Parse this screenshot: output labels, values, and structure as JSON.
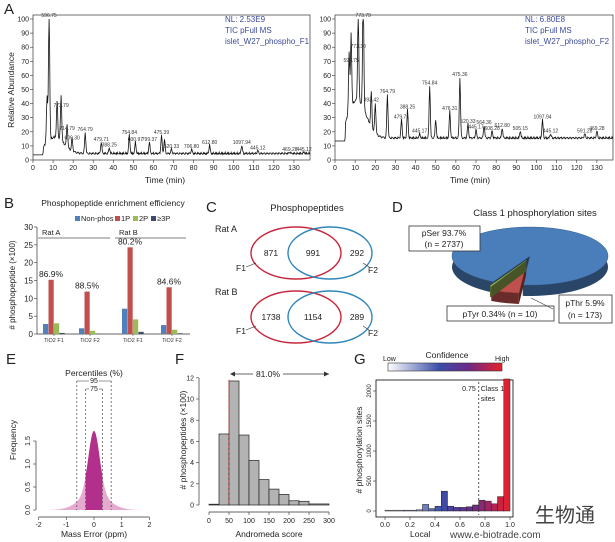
{
  "chart_data": [
    {
      "panel": "A",
      "type": "line",
      "ylabel": "Relative Abundance",
      "xlabel": "Time (min)",
      "info": [
        "NL: 2.53E9",
        "TIC pFull MS",
        "islet_W27_phospho_F1"
      ],
      "xlim": [
        0,
        138
      ],
      "ylim": [
        0,
        100
      ],
      "xticks": [
        0,
        10,
        20,
        30,
        40,
        50,
        60,
        70,
        80,
        90,
        100,
        110,
        120,
        130
      ],
      "yticks": [
        0,
        10,
        20,
        30,
        40,
        50,
        60,
        70,
        80,
        90,
        100
      ],
      "baseline": 4,
      "peaks": [
        {
          "t": 8,
          "y": 100,
          "label": "596.75"
        },
        {
          "t": 7,
          "y": 37,
          "label": ""
        },
        {
          "t": 12,
          "y": 30,
          "label": ""
        },
        {
          "t": 14,
          "y": 36,
          "label": "773.79"
        },
        {
          "t": 17,
          "y": 20,
          "label": "714.79"
        },
        {
          "t": 19.5,
          "y": 13,
          "label": "609.30"
        },
        {
          "t": 26,
          "y": 19,
          "label": "764.79"
        },
        {
          "t": 34,
          "y": 12,
          "label": "479.71"
        },
        {
          "t": 38,
          "y": 8,
          "label": "388.25"
        },
        {
          "t": 48,
          "y": 17,
          "label": "754.84"
        },
        {
          "t": 51,
          "y": 12,
          "label": "600.97"
        },
        {
          "t": 58,
          "y": 12,
          "label": "799.37"
        },
        {
          "t": 64,
          "y": 17,
          "label": "475.39"
        },
        {
          "t": 65.5,
          "y": 14,
          "label": ""
        },
        {
          "t": 69,
          "y": 7,
          "label": "520.33"
        },
        {
          "t": 79,
          "y": 7,
          "label": "706.80"
        },
        {
          "t": 88,
          "y": 10,
          "label": "612.80"
        },
        {
          "t": 104,
          "y": 10,
          "label": "1097.94"
        },
        {
          "t": 112,
          "y": 6,
          "label": "445.12"
        },
        {
          "t": 128,
          "y": 5,
          "label": "469.28"
        },
        {
          "t": 135,
          "y": 5,
          "label": "445.12"
        }
      ]
    },
    {
      "panel": "",
      "type": "line",
      "xlabel": "Time (min)",
      "info": [
        "NL: 6.80E8",
        "TIC pFull MS",
        "islet_W27_phospho_F2"
      ],
      "xlim": [
        0,
        138
      ],
      "ylim": [
        0,
        100
      ],
      "xticks": [
        0,
        10,
        20,
        30,
        40,
        50,
        60,
        70,
        80,
        90,
        100,
        110,
        120,
        130
      ],
      "yticks": [
        0,
        10,
        20,
        30,
        40,
        50,
        60,
        70,
        80,
        90,
        100
      ],
      "baseline": 15,
      "peaks": [
        {
          "t": 8,
          "y": 68,
          "label": "596.75"
        },
        {
          "t": 7,
          "y": 58,
          "label": ""
        },
        {
          "t": 11.5,
          "y": 78,
          "label": "773.30"
        },
        {
          "t": 14,
          "y": 100,
          "label": "773.79"
        },
        {
          "t": 18,
          "y": 40,
          "label": "393.42"
        },
        {
          "t": 20,
          "y": 36,
          "label": ""
        },
        {
          "t": 26,
          "y": 46,
          "label": "764.79"
        },
        {
          "t": 33,
          "y": 28,
          "label": "479.71"
        },
        {
          "t": 36,
          "y": 35,
          "label": "388.25"
        },
        {
          "t": 42,
          "y": 18,
          "label": "445.17"
        },
        {
          "t": 47,
          "y": 52,
          "label": "754.84"
        },
        {
          "t": 50,
          "y": 28,
          "label": ""
        },
        {
          "t": 57,
          "y": 34,
          "label": "476.31"
        },
        {
          "t": 62,
          "y": 58,
          "label": "475.36"
        },
        {
          "t": 66,
          "y": 25,
          "label": "520.33"
        },
        {
          "t": 70,
          "y": 21,
          "label": "445.17"
        },
        {
          "t": 74,
          "y": 24,
          "label": "564.36"
        },
        {
          "t": 78,
          "y": 20,
          "label": "608.28"
        },
        {
          "t": 83,
          "y": 22,
          "label": "612.80"
        },
        {
          "t": 92,
          "y": 20,
          "label": "505.15"
        },
        {
          "t": 103,
          "y": 28,
          "label": "1097.94"
        },
        {
          "t": 107,
          "y": 18,
          "label": "445.12"
        },
        {
          "t": 124,
          "y": 18,
          "label": "591.28"
        },
        {
          "t": 130,
          "y": 20,
          "label": "469.28"
        }
      ]
    },
    {
      "panel": "B",
      "type": "bar",
      "title": "Phosphopeptide enrichment efficiency",
      "ylabel": "# phosphopeptide (×100)",
      "ylim": [
        0,
        30
      ],
      "yticks": [
        0,
        5,
        10,
        15,
        20,
        25,
        30
      ],
      "categories": [
        "TiO2 F1",
        "TiO2 F2",
        "TiO2 F1",
        "TiO2 F2"
      ],
      "groups": [
        {
          "label": "Rat A"
        },
        {
          "label": "Rat B"
        }
      ],
      "series": [
        {
          "name": "Non-phos",
          "color": "#4f81bd",
          "values": [
            2.8,
            1.6,
            7.1,
            2.5
          ]
        },
        {
          "name": "1P",
          "color": "#c0504d",
          "values": [
            15.2,
            11.9,
            24.3,
            13.1
          ]
        },
        {
          "name": "2P",
          "color": "#9bbb59",
          "values": [
            3.0,
            0.9,
            4.1,
            1.2
          ]
        },
        {
          "name": "≥3P",
          "color": "#3f4a6e",
          "values": [
            0.3,
            0.1,
            0.6,
            0.2
          ]
        }
      ],
      "annotations": [
        "86.9%",
        "88.5%",
        "80.2%",
        "84.6%"
      ]
    },
    {
      "panel": "C",
      "type": "venn",
      "title": "Phosphopeptides",
      "sets": [
        {
          "label": "Rat A",
          "f1_only": "871",
          "both": "991",
          "f2_only": "292"
        },
        {
          "label": "Rat B",
          "f1_only": "1738",
          "both": "1154",
          "f2_only": "289"
        }
      ],
      "set_labels": [
        "F1",
        "F2"
      ],
      "colors": {
        "F1": "#c8283e",
        "F2": "#2f86b8"
      }
    },
    {
      "panel": "D",
      "type": "pie",
      "title": "Class 1 phosphorylation sites",
      "slices": [
        {
          "name": "pSer",
          "percent": 93.7,
          "n": 2737,
          "label": "pSer 93.7%",
          "nlabel": "(n = 2737)",
          "color": "#4a7ebb"
        },
        {
          "name": "pThr",
          "percent": 5.9,
          "n": 173,
          "label": "pThr 5.9%",
          "nlabel": "(n = 173)",
          "color": "#c0504d"
        },
        {
          "name": "pTyr",
          "percent": 0.34,
          "n": 10,
          "label": "pTyr 0.34% (n = 10)",
          "color": "#9bbb59"
        }
      ]
    },
    {
      "panel": "E",
      "type": "area",
      "title": "Percentiles (%)",
      "xlabel": "Mass Error (ppm)",
      "ylabel": "Frequency",
      "xlim": [
        -2.2,
        2.2
      ],
      "ylim": [
        0,
        1.8
      ],
      "xticks": [
        -2,
        -1,
        0,
        1,
        2
      ],
      "yticks": [
        "0.0",
        "0.5",
        "1.0",
        "1.5"
      ],
      "peak_frequency": 1.72,
      "percentiles": [
        {
          "label": "95",
          "range": [
            -0.62,
            0.62
          ]
        },
        {
          "label": "75",
          "range": [
            -0.3,
            0.3
          ]
        }
      ],
      "colors": {
        "inner": "#b2308c",
        "outer": "#e6a9cf"
      }
    },
    {
      "panel": "F",
      "type": "bar",
      "xlabel": "Andromeda score",
      "ylabel": "# phosphopeptides (×100)",
      "xlim": [
        0,
        300
      ],
      "ylim": [
        0,
        12
      ],
      "xticks": [
        0,
        50,
        100,
        150,
        200,
        250,
        300
      ],
      "yticks": [
        0,
        2,
        4,
        6,
        8,
        10,
        12
      ],
      "bins": [
        {
          "from": 0,
          "to": 25,
          "value": 0.05
        },
        {
          "from": 25,
          "to": 50,
          "value": 6.7
        },
        {
          "from": 50,
          "to": 75,
          "value": 11.7
        },
        {
          "from": 75,
          "to": 100,
          "value": 6.6
        },
        {
          "from": 100,
          "to": 125,
          "value": 4.2
        },
        {
          "from": 125,
          "to": 150,
          "value": 2.4
        },
        {
          "from": 150,
          "to": 175,
          "value": 1.5
        },
        {
          "from": 175,
          "to": 200,
          "value": 1.0
        },
        {
          "from": 200,
          "to": 225,
          "value": 0.4
        },
        {
          "from": 225,
          "to": 250,
          "value": 0.35
        },
        {
          "from": 250,
          "to": 300,
          "value": 0.1
        }
      ],
      "threshold": 50,
      "annotation": "81.0%"
    },
    {
      "panel": "G",
      "type": "bar",
      "colorbar": {
        "title": "Confidence",
        "low": "Low",
        "high": "High"
      },
      "xlabel": "Local",
      "ylabel": "# phosphorylation sites",
      "xlim": [
        0,
        1
      ],
      "ylim": [
        0,
        2300
      ],
      "xticks": [
        "0.0",
        "0.2",
        "0.4",
        "0.6",
        "0.8",
        "1.0"
      ],
      "yticks": [
        0,
        500,
        1000,
        1500,
        2000
      ],
      "bins": [
        {
          "from": 0.0,
          "to": 0.15,
          "value": 0
        },
        {
          "from": 0.15,
          "to": 0.25,
          "value": 10
        },
        {
          "from": 0.25,
          "to": 0.3,
          "value": 20
        },
        {
          "from": 0.3,
          "to": 0.35,
          "value": 110
        },
        {
          "from": 0.35,
          "to": 0.4,
          "value": 40
        },
        {
          "from": 0.4,
          "to": 0.45,
          "value": 80
        },
        {
          "from": 0.45,
          "to": 0.5,
          "value": 330
        },
        {
          "from": 0.5,
          "to": 0.55,
          "value": 80
        },
        {
          "from": 0.55,
          "to": 0.6,
          "value": 60
        },
        {
          "from": 0.6,
          "to": 0.65,
          "value": 60
        },
        {
          "from": 0.65,
          "to": 0.7,
          "value": 70
        },
        {
          "from": 0.7,
          "to": 0.75,
          "value": 100
        },
        {
          "from": 0.75,
          "to": 0.8,
          "value": 180
        },
        {
          "from": 0.8,
          "to": 0.85,
          "value": 165
        },
        {
          "from": 0.85,
          "to": 0.9,
          "value": 120
        },
        {
          "from": 0.9,
          "to": 0.95,
          "value": 240
        },
        {
          "from": 0.95,
          "to": 1.0,
          "value": 2200
        }
      ],
      "threshold": 0.75,
      "threshold_label": "0.75",
      "threshold_note": [
        "Class 1",
        "sites"
      ]
    }
  ],
  "watermark": {
    "logo": "生物通",
    "url": "www.e-biotrade.com",
    "color": "#5aaee0"
  }
}
